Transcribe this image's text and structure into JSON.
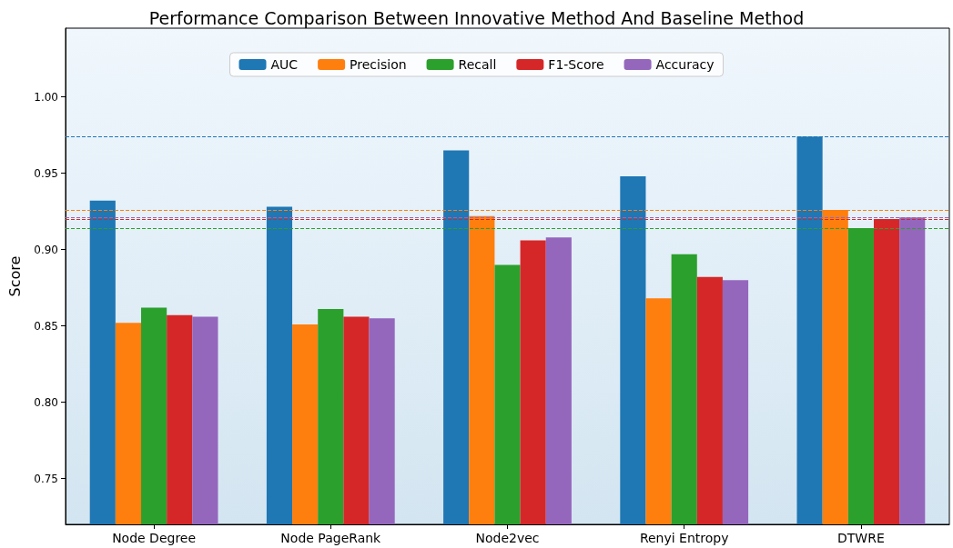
{
  "chart_data": {
    "type": "bar",
    "title": "Performance Comparison Between Innovative Method And Baseline Method",
    "ylabel": "Score",
    "categories": [
      "Node Degree",
      "Node PageRank",
      "Node2vec",
      "Renyi Entropy",
      "DTWRE"
    ],
    "series": [
      {
        "name": "AUC",
        "color": "#1f77b4",
        "values": [
          0.932,
          0.928,
          0.965,
          0.948,
          0.974
        ]
      },
      {
        "name": "Precision",
        "color": "#ff7f0e",
        "values": [
          0.852,
          0.851,
          0.922,
          0.868,
          0.926
        ]
      },
      {
        "name": "Recall",
        "color": "#2ca02c",
        "values": [
          0.862,
          0.861,
          0.89,
          0.897,
          0.914
        ]
      },
      {
        "name": "F1-Score",
        "color": "#d62728",
        "values": [
          0.857,
          0.856,
          0.906,
          0.882,
          0.92
        ]
      },
      {
        "name": "Accuracy",
        "color": "#9467bd",
        "values": [
          0.856,
          0.855,
          0.908,
          0.88,
          0.921
        ]
      }
    ],
    "ylim": [
      0.72,
      1.045
    ],
    "yticks": [
      0.75,
      {
        "value": 0.8,
        "label": "0.80"
      },
      0.85,
      {
        "value": 0.9,
        "label": "0.90"
      },
      0.95,
      {
        "value": 1.0,
        "label": "1.00"
      }
    ],
    "ref_lines": [
      {
        "axis": "y",
        "value": 0.974,
        "color": "#1f77b4",
        "line_style": "dashed"
      },
      {
        "axis": "y",
        "value": 0.926,
        "color": "#ff7f0e",
        "line_style": "dashed"
      },
      {
        "axis": "y",
        "value": 0.914,
        "color": "#2ca02c",
        "line_style": "dashed"
      },
      {
        "axis": "y",
        "value": 0.92,
        "color": "#d62728",
        "line_style": "dashed"
      },
      {
        "axis": "y",
        "value": 0.921,
        "color": "#9467bd",
        "line_style": "dashed"
      }
    ],
    "grid": false,
    "legend": "top"
  }
}
